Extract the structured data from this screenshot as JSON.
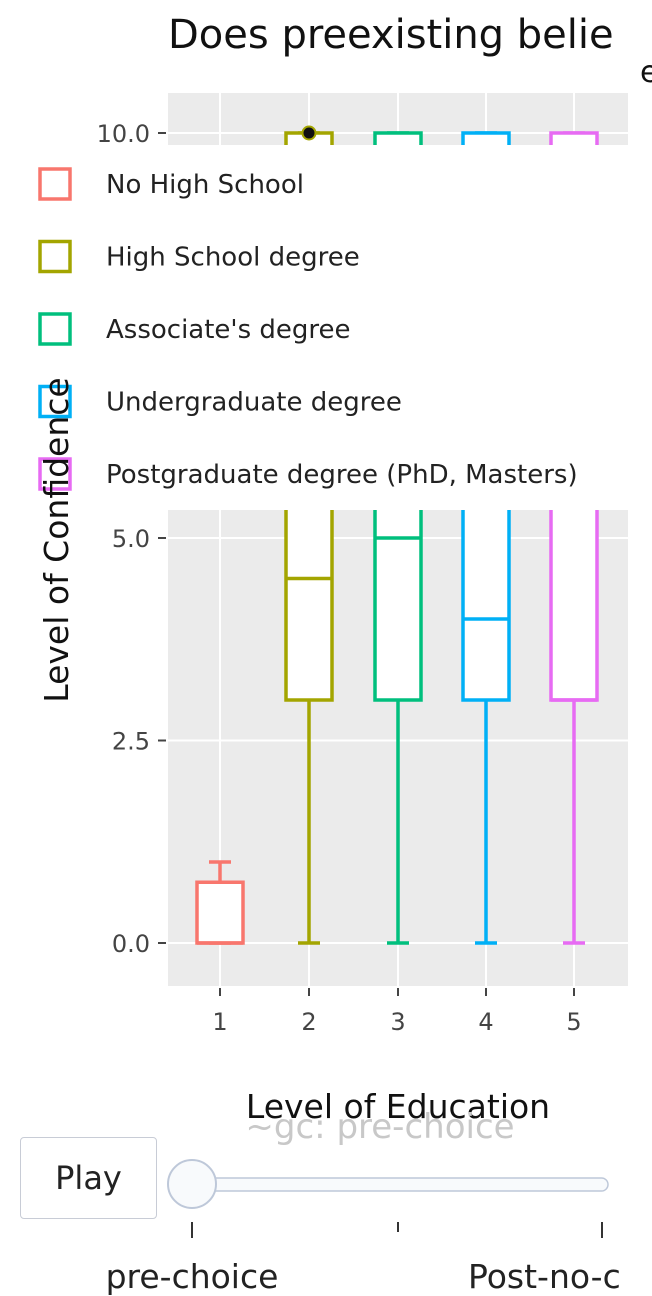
{
  "chart_data": {
    "type": "box",
    "title": "Does preexisting belie",
    "title_line2": "e",
    "xlabel": "Level of Education",
    "ylabel": "Level of Confidence",
    "categories": [
      "1",
      "2",
      "3",
      "4",
      "5"
    ],
    "y_ticks": [
      "0.0",
      "2.5",
      "5.0",
      "10.0"
    ],
    "legend_placement": "overlaid-top-left",
    "grid": true,
    "series": [
      {
        "name": "No High School",
        "color": "#F8766D",
        "category": "1",
        "min": 0,
        "q1": 0,
        "median": 0,
        "q3": 0.75,
        "max": 1
      },
      {
        "name": "High School degree",
        "color": "#A3A500",
        "category": "2",
        "min": 0,
        "q1": 3,
        "median": 4.5,
        "q3": 10,
        "max": 10,
        "outliers": [
          10
        ]
      },
      {
        "name": "Associate's degree",
        "color": "#00BF7D",
        "category": "3",
        "min": 0,
        "q1": 3,
        "median": 5,
        "q3": 10,
        "max": 10
      },
      {
        "name": "Undergraduate degree",
        "color": "#00B0F6",
        "category": "4",
        "min": 0,
        "q1": 3,
        "median": 4,
        "q3": 10,
        "max": 10
      },
      {
        "name": "Postgraduate degree (PhD, Masters)",
        "color": "#E76BF3",
        "category": "5",
        "min": 0,
        "q1": 3,
        "median": 3,
        "q3": 10,
        "max": 10
      }
    ]
  },
  "animation": {
    "frame_label": "~gc: pre-choice",
    "play_label": "Play",
    "slider_steps": [
      "pre-choice",
      "",
      "Post-no-c"
    ],
    "current_step": 0
  },
  "colors": {
    "panel_bg": "#EBEBEB",
    "grid": "#FFFFFF",
    "slider_track": "#F8FAFC",
    "slider_border": "#BEC8D9"
  }
}
